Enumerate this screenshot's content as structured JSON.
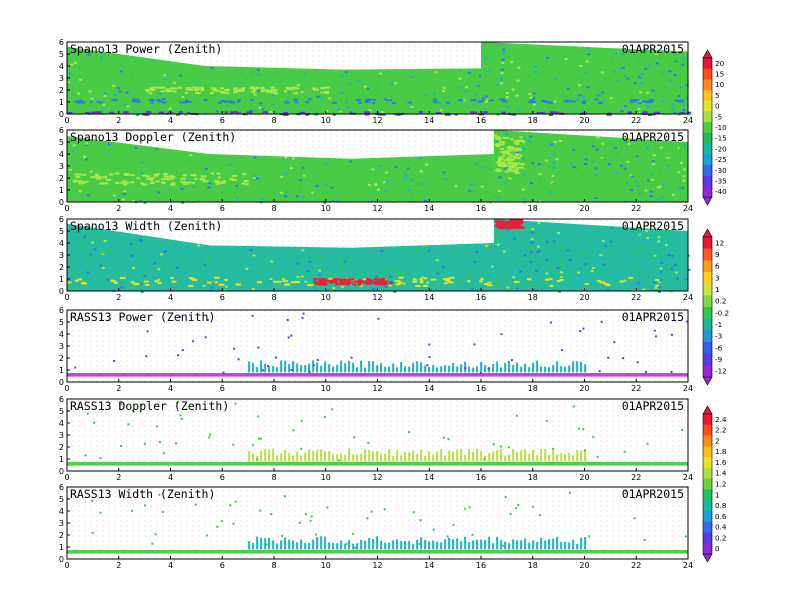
{
  "chart_data": [
    {
      "type": "heatmap",
      "title": "Spano13 Power (Zenith)",
      "date": "01APR2015",
      "x_ticks": [
        "0",
        "2",
        "4",
        "6",
        "8",
        "10",
        "12",
        "14",
        "16",
        "18",
        "20",
        "22",
        "24"
      ],
      "y_ticks": [
        "0",
        "1",
        "2",
        "3",
        "4",
        "5",
        "6"
      ],
      "xlim": [
        0,
        24
      ],
      "ylim": [
        0,
        6
      ],
      "colorbar": "A",
      "fill": [
        {
          "x": [
            0,
            16
          ],
          "ytop": [
            5.6,
            4.0,
            3.7,
            3.8
          ]
        },
        {
          "x": [
            16,
            24
          ],
          "ytop": [
            6.0,
            5.2
          ]
        }
      ],
      "features": [
        {
          "x": [
            0,
            24
          ],
          "y": [
            1.0,
            1.3
          ],
          "tone": "blue"
        },
        {
          "x": [
            3,
            10
          ],
          "y": [
            1.8,
            2.3
          ],
          "tone": "lightgreen"
        },
        {
          "x": [
            0,
            24
          ],
          "y": [
            0,
            0.25
          ],
          "tone": "purple"
        }
      ]
    },
    {
      "type": "heatmap",
      "title": "Spano13 Doppler (Zenith)",
      "date": "01APR2015",
      "x_ticks": [
        "0",
        "2",
        "4",
        "6",
        "8",
        "10",
        "12",
        "14",
        "16",
        "18",
        "20",
        "22",
        "24"
      ],
      "y_ticks": [
        "0",
        "1",
        "2",
        "3",
        "4",
        "5",
        "6"
      ],
      "xlim": [
        0,
        24
      ],
      "ylim": [
        0,
        6
      ],
      "colorbar": "A",
      "fill": [
        {
          "x": [
            0,
            16.5
          ],
          "ytop": [
            5.5,
            4.0,
            3.6,
            4.0
          ]
        },
        {
          "x": [
            16.5,
            24
          ],
          "ytop": [
            6.0,
            5.0
          ]
        }
      ],
      "features": [
        {
          "x": [
            0,
            7
          ],
          "y": [
            1.5,
            2.5
          ],
          "tone": "lightgreen"
        },
        {
          "x": [
            16.5,
            17.5
          ],
          "y": [
            2.5,
            5.5
          ],
          "tone": "lightgreen"
        }
      ]
    },
    {
      "type": "heatmap",
      "title": "Spano13 Width (Zenith)",
      "date": "01APR2015",
      "x_ticks": [
        "0",
        "2",
        "4",
        "6",
        "8",
        "10",
        "12",
        "14",
        "16",
        "18",
        "20",
        "22",
        "24"
      ],
      "y_ticks": [
        "0",
        "1",
        "2",
        "3",
        "4",
        "5",
        "6"
      ],
      "xlim": [
        0,
        24
      ],
      "ylim": [
        0,
        6
      ],
      "colorbar": "B",
      "fill": [
        {
          "x": [
            0,
            16.5
          ],
          "ytop": [
            5.6,
            3.8,
            3.6,
            4.0
          ]
        },
        {
          "x": [
            16.5,
            24
          ],
          "ytop": [
            6.0,
            5.0
          ]
        }
      ],
      "features": [
        {
          "x": [
            0,
            24
          ],
          "y": [
            0.5,
            1.2
          ],
          "tone": "yellow"
        },
        {
          "x": [
            9.5,
            12.5
          ],
          "y": [
            0.6,
            1.1
          ],
          "tone": "red"
        },
        {
          "x": [
            16.5,
            17.5
          ],
          "y": [
            5.3,
            6.0
          ],
          "tone": "red"
        }
      ]
    },
    {
      "type": "heatmap",
      "title": "RASS13 Power (Zenith)",
      "date": "01APR2015",
      "x_ticks": [
        "0",
        "2",
        "4",
        "6",
        "8",
        "10",
        "12",
        "14",
        "16",
        "18",
        "20",
        "22",
        "24"
      ],
      "y_ticks": [
        "0",
        "1",
        "2",
        "3",
        "4",
        "5",
        "6"
      ],
      "xlim": [
        0,
        24
      ],
      "ylim": [
        0,
        6
      ],
      "colorbar": "B",
      "bands": [
        {
          "x": [
            0,
            24
          ],
          "y": [
            0.45,
            0.75
          ],
          "tone": "magenta"
        },
        {
          "x": [
            7,
            20
          ],
          "y": [
            0.8,
            1.8
          ],
          "tone": "cyan"
        }
      ]
    },
    {
      "type": "heatmap",
      "title": "RASS13 Doppler (Zenith)",
      "date": "01APR2015",
      "x_ticks": [
        "0",
        "2",
        "4",
        "6",
        "8",
        "10",
        "12",
        "14",
        "16",
        "18",
        "20",
        "22",
        "24"
      ],
      "y_ticks": [
        "0",
        "1",
        "2",
        "3",
        "4",
        "5",
        "6"
      ],
      "xlim": [
        0,
        24
      ],
      "ylim": [
        0,
        6
      ],
      "colorbar": "C",
      "bands": [
        {
          "x": [
            0,
            24
          ],
          "y": [
            0.45,
            0.75
          ],
          "tone": "green"
        },
        {
          "x": [
            7,
            20
          ],
          "y": [
            0.8,
            1.9
          ],
          "tone": "yellowgreen"
        }
      ]
    },
    {
      "type": "heatmap",
      "title": "RASS13 Width (Zenith)",
      "date": "01APR2015",
      "x_ticks": [
        "0",
        "2",
        "4",
        "6",
        "8",
        "10",
        "12",
        "14",
        "16",
        "18",
        "20",
        "22",
        "24"
      ],
      "y_ticks": [
        "0",
        "1",
        "2",
        "3",
        "4",
        "5",
        "6"
      ],
      "xlim": [
        0,
        24
      ],
      "ylim": [
        0,
        6
      ],
      "colorbar": "C",
      "bands": [
        {
          "x": [
            0,
            24
          ],
          "y": [
            0.45,
            0.75
          ],
          "tone": "green"
        },
        {
          "x": [
            7,
            20
          ],
          "y": [
            0.8,
            1.9
          ],
          "tone": "cyan"
        }
      ]
    }
  ],
  "colorbars": {
    "A": {
      "labels": [
        "20",
        "15",
        "10",
        "5",
        "0",
        "-5",
        "-10",
        "-15",
        "-20",
        "-25",
        "-30",
        "-35",
        "-40"
      ],
      "colors": [
        "#e8163a",
        "#ff4d1a",
        "#ff8a1a",
        "#ffc21a",
        "#e6e624",
        "#a8e040",
        "#4ccc3c",
        "#1ebf5a",
        "#17b8a0",
        "#1aa0d8",
        "#2e6fe8",
        "#5a3ce0",
        "#8a2ad8"
      ]
    },
    "B": {
      "labels": [
        "12",
        "9",
        "6",
        "3",
        "1",
        "0.2",
        "-0.2",
        "-1",
        "-3",
        "-6",
        "-9",
        "-12"
      ],
      "colors": [
        "#e8163a",
        "#ff5a1a",
        "#ff9a1a",
        "#ffd21a",
        "#cfe63a",
        "#7ed842",
        "#30c84a",
        "#19b89a",
        "#1a98d8",
        "#2e62e6",
        "#5a3ce0",
        "#9a28d8"
      ]
    },
    "C": {
      "labels": [
        "2.4",
        "2.2",
        "2",
        "1.8",
        "1.6",
        "1.4",
        "1.2",
        "1",
        "0.8",
        "0.6",
        "0.4",
        "0.2",
        "0"
      ],
      "colors": [
        "#e8163a",
        "#ff4d1a",
        "#ff8a1a",
        "#ffbe1a",
        "#e6e624",
        "#b0e040",
        "#62d23e",
        "#22c258",
        "#17b8a0",
        "#1aa0d8",
        "#2e6fe8",
        "#5a3ce0",
        "#8a2ad8"
      ]
    }
  },
  "palette": {
    "green": "#3ec83c",
    "lightgreen": "#a8e64a",
    "blue": "#2a7ee6",
    "cyan": "#1ab4c8",
    "purple": "#6a36d8",
    "magenta": "#c02ee0",
    "yellow": "#e6e024",
    "yellowgreen": "#bde040",
    "red": "#e8203a",
    "teal": "#1ab89a"
  }
}
